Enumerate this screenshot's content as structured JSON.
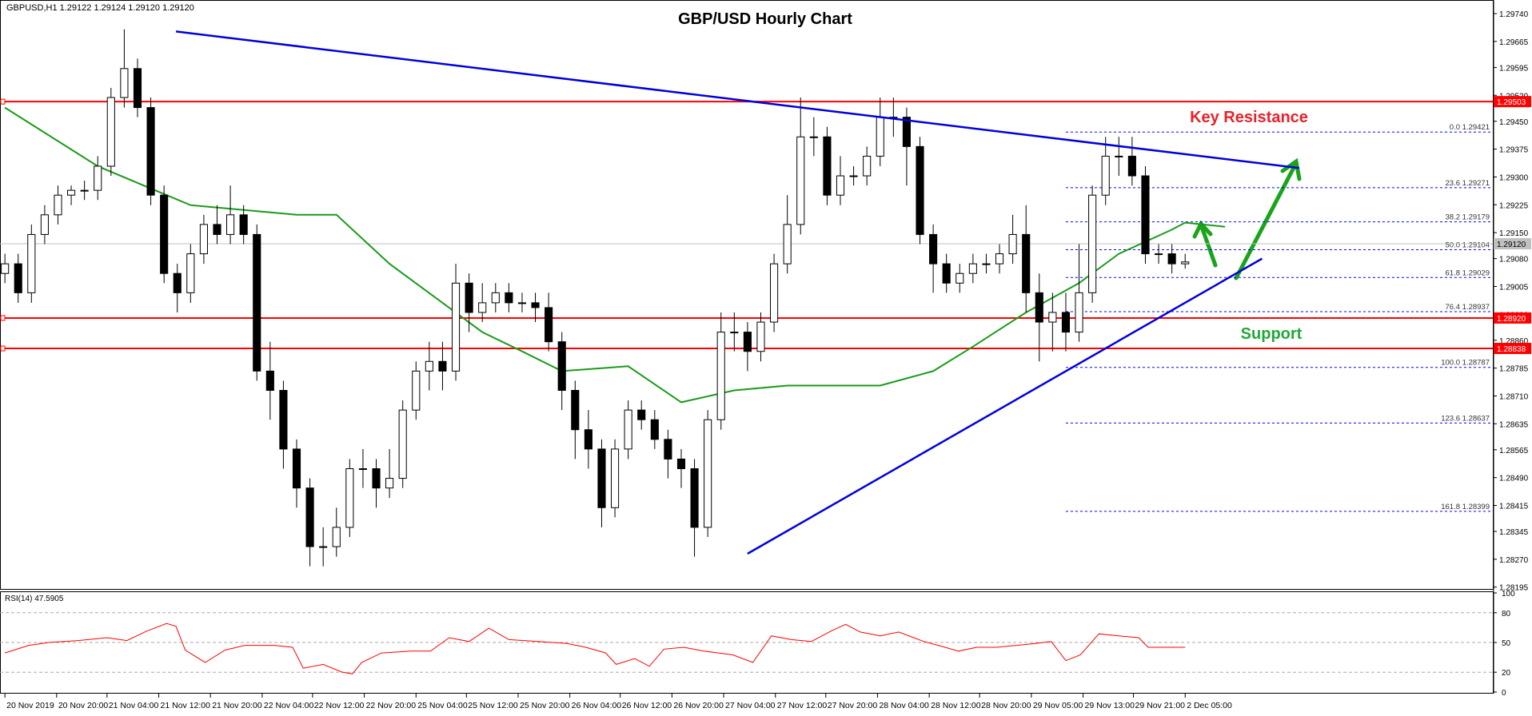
{
  "header": "GBPUSD,H1  1.29122 1.29124 1.29120 1.29120",
  "chart_data": [
    {
      "type": "candlestick",
      "title": "GBP/USD Hourly Chart",
      "xlim": [
        -0.37,
        112.2
      ],
      "ylim": [
        1.2819,
        1.29766
      ],
      "yticks": [
        {
          "value": 1.2974,
          "label": "1.29740"
        },
        1.29665,
        1.29595,
        {
          "value": 1.2952,
          "label": "1.29520"
        },
        {
          "value": 1.2945,
          "label": "1.29450"
        },
        1.29375,
        {
          "value": 1.293,
          "label": "1.29300"
        },
        1.29225,
        {
          "value": 1.2915,
          "label": "1.29150"
        },
        {
          "value": 1.2908,
          "label": "1.29080"
        },
        1.29005,
        {
          "value": 1.2893,
          "label": "1.28930"
        },
        {
          "value": 1.2886,
          "label": "1.28860"
        },
        1.28785,
        {
          "value": 1.2871,
          "label": "1.28710"
        },
        1.28635,
        1.28565,
        {
          "value": 1.2849,
          "label": "1.28490"
        },
        1.28415,
        1.28345,
        {
          "value": 1.2827,
          "label": "1.28270"
        },
        1.28195
      ],
      "xticks": [
        {
          "value": 0,
          "label": "20 Nov 2019"
        },
        {
          "value": 3.9,
          "label": "20 Nov 20:00"
        },
        {
          "value": 7.7,
          "label": "21 Nov 04:00"
        },
        {
          "value": 11.6,
          "label": "21 Nov 12:00"
        },
        {
          "value": 15.5,
          "label": "21 Nov 20:00"
        },
        {
          "value": 19.4,
          "label": "22 Nov 04:00"
        },
        {
          "value": 23.2,
          "label": "22 Nov 12:00"
        },
        {
          "value": 27.1,
          "label": "22 Nov 20:00"
        },
        {
          "value": 31,
          "label": "25 Nov 04:00"
        },
        {
          "value": 34.8,
          "label": "25 Nov 12:00"
        },
        {
          "value": 38.7,
          "label": "25 Nov 20:00"
        },
        {
          "value": 42.6,
          "label": "26 Nov 04:00"
        },
        {
          "value": 46.4,
          "label": "26 Nov 12:00"
        },
        {
          "value": 50.3,
          "label": "26 Nov 20:00"
        },
        {
          "value": 54.2,
          "label": "27 Nov 04:00"
        },
        {
          "value": 58.1,
          "label": "27 Nov 12:00"
        },
        {
          "value": 61.9,
          "label": "27 Nov 20:00"
        },
        {
          "value": 65.8,
          "label": "28 Nov 04:00"
        },
        {
          "value": 69.7,
          "label": "28 Nov 12:00"
        },
        {
          "value": 73.5,
          "label": "28 Nov 20:00"
        },
        {
          "value": 77.4,
          "label": "29 Nov 05:00"
        },
        {
          "value": 81.3,
          "label": "29 Nov 13:00"
        },
        {
          "value": 85.1,
          "label": "29 Nov 21:00"
        },
        {
          "value": 89,
          "label": "2 Dec 05:00"
        }
      ],
      "up_color": "#ffffff",
      "down_color": "#000000",
      "ohlc": [
        [
          1.2904,
          1.29093,
          1.29014,
          1.29066
        ],
        [
          1.29066,
          1.29093,
          1.28961,
          1.28988
        ],
        [
          1.28988,
          1.29172,
          1.28961,
          1.29145
        ],
        [
          1.29145,
          1.29224,
          1.29119,
          1.29198
        ],
        [
          1.29198,
          1.29277,
          1.29172,
          1.29251
        ],
        [
          1.29251,
          1.29277,
          1.29224,
          1.29264
        ],
        [
          1.29264,
          1.2929,
          1.29238,
          1.29264
        ],
        [
          1.29264,
          1.29356,
          1.29238,
          1.29329
        ],
        [
          1.29329,
          1.2954,
          1.29303,
          1.29514
        ],
        [
          1.29514,
          1.29698,
          1.29487,
          1.29592
        ],
        [
          1.29592,
          1.29619,
          1.29461,
          1.29487
        ],
        [
          1.29487,
          1.29514,
          1.29224,
          1.29251
        ],
        [
          1.29251,
          1.29277,
          1.29014,
          1.2904
        ],
        [
          1.2904,
          1.29066,
          1.28935,
          1.28988
        ],
        [
          1.28988,
          1.29119,
          1.28961,
          1.29093
        ],
        [
          1.29093,
          1.29198,
          1.29066,
          1.29172
        ],
        [
          1.29172,
          1.29224,
          1.29119,
          1.29145
        ],
        [
          1.29145,
          1.29277,
          1.29119,
          1.29198
        ],
        [
          1.29198,
          1.29224,
          1.29119,
          1.29145
        ],
        [
          1.29145,
          1.29172,
          1.28751,
          1.28777
        ],
        [
          1.28777,
          1.28856,
          1.28646,
          1.28725
        ],
        [
          1.28725,
          1.28751,
          1.28514,
          1.28567
        ],
        [
          1.28567,
          1.28593,
          1.28409,
          1.28462
        ],
        [
          1.28462,
          1.28488,
          1.28251,
          1.28304
        ],
        [
          1.28304,
          1.28356,
          1.28251,
          1.28304
        ],
        [
          1.28304,
          1.28409,
          1.28277,
          1.28356
        ],
        [
          1.28356,
          1.2854,
          1.2833,
          1.28514
        ],
        [
          1.28514,
          1.28567,
          1.28462,
          1.28514
        ],
        [
          1.28514,
          1.2854,
          1.28409,
          1.28462
        ],
        [
          1.28462,
          1.28567,
          1.28435,
          1.28488
        ],
        [
          1.28488,
          1.28698,
          1.28462,
          1.28672
        ],
        [
          1.28672,
          1.28803,
          1.28646,
          1.28777
        ],
        [
          1.28777,
          1.28856,
          1.28725,
          1.28803
        ],
        [
          1.28803,
          1.28856,
          1.28725,
          1.28777
        ],
        [
          1.28777,
          1.29066,
          1.28751,
          1.29014
        ],
        [
          1.29014,
          1.2904,
          1.28882,
          1.28935
        ],
        [
          1.28935,
          1.29014,
          1.28909,
          1.28961
        ],
        [
          1.28961,
          1.29014,
          1.28935,
          1.28988
        ],
        [
          1.28988,
          1.29014,
          1.28935,
          1.28961
        ],
        [
          1.28961,
          1.28988,
          1.28935,
          1.28961
        ],
        [
          1.28961,
          1.28988,
          1.28909,
          1.28948
        ],
        [
          1.28948,
          1.28988,
          1.2883,
          1.28856
        ],
        [
          1.28856,
          1.28882,
          1.28672,
          1.28725
        ],
        [
          1.28725,
          1.28751,
          1.2854,
          1.28619
        ],
        [
          1.28619,
          1.28672,
          1.28514,
          1.28567
        ],
        [
          1.28567,
          1.28593,
          1.28356,
          1.28409
        ],
        [
          1.28409,
          1.28593,
          1.28383,
          1.28567
        ],
        [
          1.28567,
          1.28698,
          1.2854,
          1.28672
        ],
        [
          1.28672,
          1.28698,
          1.28619,
          1.28646
        ],
        [
          1.28646,
          1.28672,
          1.28567,
          1.28593
        ],
        [
          1.28593,
          1.28619,
          1.28488,
          1.2854
        ],
        [
          1.2854,
          1.28567,
          1.28462,
          1.28514
        ],
        [
          1.28514,
          1.2854,
          1.28277,
          1.28356
        ],
        [
          1.28356,
          1.28672,
          1.2833,
          1.28646
        ],
        [
          1.28646,
          1.28935,
          1.28619,
          1.28882
        ],
        [
          1.28882,
          1.28935,
          1.2883,
          1.28882
        ],
        [
          1.28882,
          1.28909,
          1.28777,
          1.2883
        ],
        [
          1.2883,
          1.28935,
          1.28803,
          1.28909
        ],
        [
          1.28909,
          1.29093,
          1.28882,
          1.29066
        ],
        [
          1.29066,
          1.29251,
          1.2904,
          1.29172
        ],
        [
          1.29172,
          1.29514,
          1.29145,
          1.29408
        ],
        [
          1.29408,
          1.29461,
          1.29356,
          1.29408
        ],
        [
          1.29408,
          1.29435,
          1.29224,
          1.29251
        ],
        [
          1.29251,
          1.29356,
          1.29224,
          1.29303
        ],
        [
          1.29303,
          1.29329,
          1.29277,
          1.29303
        ],
        [
          1.29303,
          1.29382,
          1.29277,
          1.29356
        ],
        [
          1.29356,
          1.29514,
          1.29329,
          1.29461
        ],
        [
          1.29461,
          1.29514,
          1.29408,
          1.29461
        ],
        [
          1.29461,
          1.29487,
          1.29277,
          1.29382
        ],
        [
          1.29382,
          1.29408,
          1.29119,
          1.29145
        ],
        [
          1.29145,
          1.29172,
          1.28988,
          1.29066
        ],
        [
          1.29066,
          1.29093,
          1.28988,
          1.29014
        ],
        [
          1.29014,
          1.29066,
          1.28988,
          1.2904
        ],
        [
          1.2904,
          1.29093,
          1.29014,
          1.29066
        ],
        [
          1.29066,
          1.29093,
          1.2904,
          1.29066
        ],
        [
          1.29066,
          1.29119,
          1.2904,
          1.29093
        ],
        [
          1.29093,
          1.29198,
          1.29066,
          1.29145
        ],
        [
          1.29145,
          1.29224,
          1.28935,
          1.28988
        ],
        [
          1.28988,
          1.2904,
          1.28803,
          1.28909
        ],
        [
          1.28909,
          1.28988,
          1.2883,
          1.28935
        ],
        [
          1.28935,
          1.28988,
          1.2883,
          1.28882
        ],
        [
          1.28882,
          1.29119,
          1.28856,
          1.28988
        ],
        [
          1.28988,
          1.29277,
          1.28961,
          1.29251
        ],
        [
          1.29251,
          1.29408,
          1.29224,
          1.29356
        ],
        [
          1.29356,
          1.29408,
          1.29303,
          1.29356
        ],
        [
          1.29356,
          1.29408,
          1.29277,
          1.29303
        ],
        [
          1.29303,
          1.29329,
          1.29066,
          1.29093
        ],
        [
          1.29093,
          1.29119,
          1.29066,
          1.29093
        ],
        [
          1.29093,
          1.29119,
          1.2904,
          1.29066
        ],
        [
          1.29066,
          1.29093,
          1.29053,
          1.29071
        ]
      ],
      "ma": {
        "color": "#1a9a1a",
        "x": [
          0,
          7,
          14,
          22,
          25,
          29,
          33,
          36,
          39,
          42,
          47,
          51,
          55,
          59,
          63,
          66,
          70,
          73,
          77,
          81,
          84,
          88,
          89,
          92
        ],
        "values": [
          1.29487,
          1.29329,
          1.29224,
          1.29198,
          1.29198,
          1.29066,
          1.28961,
          1.28882,
          1.2883,
          1.28777,
          1.2879,
          1.28693,
          1.28725,
          1.28738,
          1.28738,
          1.28738,
          1.28777,
          1.28843,
          1.28935,
          1.29014,
          1.29093,
          1.29158,
          1.29177,
          1.29166
        ]
      },
      "levels": [
        {
          "value": 1.29503,
          "color": "#ff0000"
        },
        {
          "value": 1.2892,
          "label": "1.28920",
          "color": "#ff0000"
        },
        {
          "value": 1.28838,
          "color": "#ff0000"
        }
      ],
      "current_price": {
        "value": 1.2912,
        "label": "1.29120",
        "color": "#c0c0c0"
      },
      "fibonacci": {
        "color": "#0000ff",
        "x": [
          80,
          112.2
        ],
        "levels": [
          {
            "level": "0.0",
            "value": 1.29421
          },
          {
            "level": "23.6",
            "value": 1.29271
          },
          {
            "level": "38.2",
            "value": 1.29179
          },
          {
            "level": "50.0",
            "value": 1.29104
          },
          {
            "level": "61.8",
            "value": 1.29029
          },
          {
            "level": "76.4",
            "value": 1.28937
          },
          {
            "level": "100.0",
            "value": 1.28787
          },
          {
            "level": "123.6",
            "value": 1.28637
          },
          {
            "level": "161.8",
            "value": 1.28399
          }
        ]
      },
      "trendlines": [
        {
          "color": "#0000dd",
          "x": [
            12.9,
            97.6
          ],
          "values": [
            1.29692,
            1.29324
          ]
        },
        {
          "color": "#0000dd",
          "x": [
            56,
            94.8
          ],
          "values": [
            1.28285,
            1.2908
          ]
        }
      ],
      "annotations": [
        {
          "text": "Key Resistance",
          "color": "#e8222a"
        },
        {
          "text": "Support",
          "color": "#22a83a"
        }
      ]
    },
    {
      "type": "line",
      "title": "RSI(14) 47.5905",
      "xlim": [
        -0.37,
        112.2
      ],
      "ylim": [
        0,
        100
      ],
      "yticks": [
        0,
        20,
        50,
        80,
        100
      ],
      "color": "#ff0000",
      "x": [
        0,
        1.8,
        3.3,
        5.5,
        7.7,
        9.2,
        10.7,
        12.2,
        12.9,
        13.6,
        15.1,
        16.6,
        18.1,
        20.3,
        21.7,
        22.5,
        24,
        25.4,
        26.2,
        26.9,
        28.4,
        30.6,
        32.1,
        33.5,
        35,
        36.5,
        38,
        40.2,
        42.4,
        43.8,
        45.3,
        46.1,
        47.5,
        48.6,
        49.7,
        51.2,
        52.7,
        54.9,
        56.4,
        57.8,
        59.3,
        60.8,
        62.3,
        63.4,
        64.5,
        66,
        67.4,
        69.3,
        70.4,
        71.9,
        73.3,
        74.8,
        76.3,
        77.7,
        78.9,
        80,
        81.1,
        82.5,
        84,
        85.5,
        86.2,
        87.3,
        89
      ],
      "values": [
        39.4,
        47.1,
        50,
        51.9,
        54.8,
        51.9,
        61.5,
        69.2,
        66.3,
        42.3,
        29.8,
        42.3,
        47.1,
        47.1,
        45.2,
        24,
        27.9,
        20.2,
        18.3,
        29.8,
        39.4,
        41.3,
        41.3,
        54.8,
        51,
        64.4,
        52.9,
        51,
        49,
        45.2,
        39.4,
        27.9,
        33.7,
        26,
        43.3,
        45.2,
        41.3,
        37.5,
        29.8,
        56.7,
        52.9,
        51,
        61.5,
        68.3,
        60.6,
        56.7,
        60.6,
        51,
        47.1,
        41.3,
        45.2,
        45.2,
        47.1,
        49,
        51,
        31.7,
        37.5,
        58.7,
        56.7,
        54.8,
        45.2,
        45.2,
        45.2
      ]
    }
  ]
}
